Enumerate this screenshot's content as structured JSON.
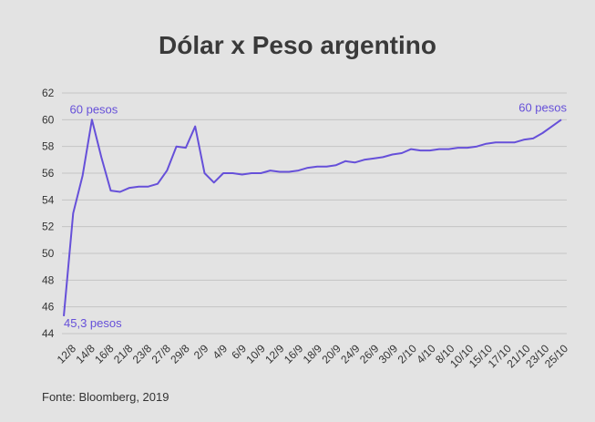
{
  "chart_data": {
    "type": "line",
    "title": "Dólar x Peso argentino",
    "source": "Fonte: Bloomberg, 2019",
    "xlabel": "",
    "ylabel": "",
    "ylim": [
      44,
      62
    ],
    "yticks": [
      44,
      46,
      48,
      50,
      52,
      54,
      56,
      58,
      60,
      62
    ],
    "grid": true,
    "legend": "none",
    "colors": {
      "line": "#6650d9",
      "annotation": "#6650d9",
      "grid": "#c4c4c4",
      "text": "#333333"
    },
    "xtick_labels": [
      "12/8",
      "14/8",
      "16/8",
      "21/8",
      "23/8",
      "27/8",
      "29/8",
      "2/9",
      "4/9",
      "6/9",
      "10/9",
      "12/9",
      "16/9",
      "18/9",
      "20/9",
      "24/9",
      "26/9",
      "30/9",
      "2/10",
      "4/10",
      "8/10",
      "10/10",
      "15/10",
      "17/10",
      "21/10",
      "23/10",
      "25/10"
    ],
    "series": [
      {
        "values": [
          45.3,
          53.0,
          55.8,
          60.0,
          57.2,
          54.7,
          54.6,
          54.9,
          55.0,
          55.0,
          55.2,
          56.2,
          58.0,
          57.9,
          59.5,
          56.0,
          55.3,
          56.0,
          56.0,
          55.9,
          56.0,
          56.0,
          56.2,
          56.1,
          56.1,
          56.2,
          56.4,
          56.5,
          56.5,
          56.6,
          56.9,
          56.8,
          57.0,
          57.1,
          57.2,
          57.4,
          57.5,
          57.8,
          57.7,
          57.7,
          57.8,
          57.8,
          57.9,
          57.9,
          58.0,
          58.2,
          58.3,
          58.3,
          58.3,
          58.5,
          58.6,
          59.0,
          59.5,
          60.0
        ]
      }
    ],
    "annotations": [
      {
        "text": "60 pesos",
        "point_index": 3
      },
      {
        "text": "45,3 pesos",
        "point_index": 0
      },
      {
        "text": "60 pesos",
        "point_index": 53
      }
    ]
  }
}
